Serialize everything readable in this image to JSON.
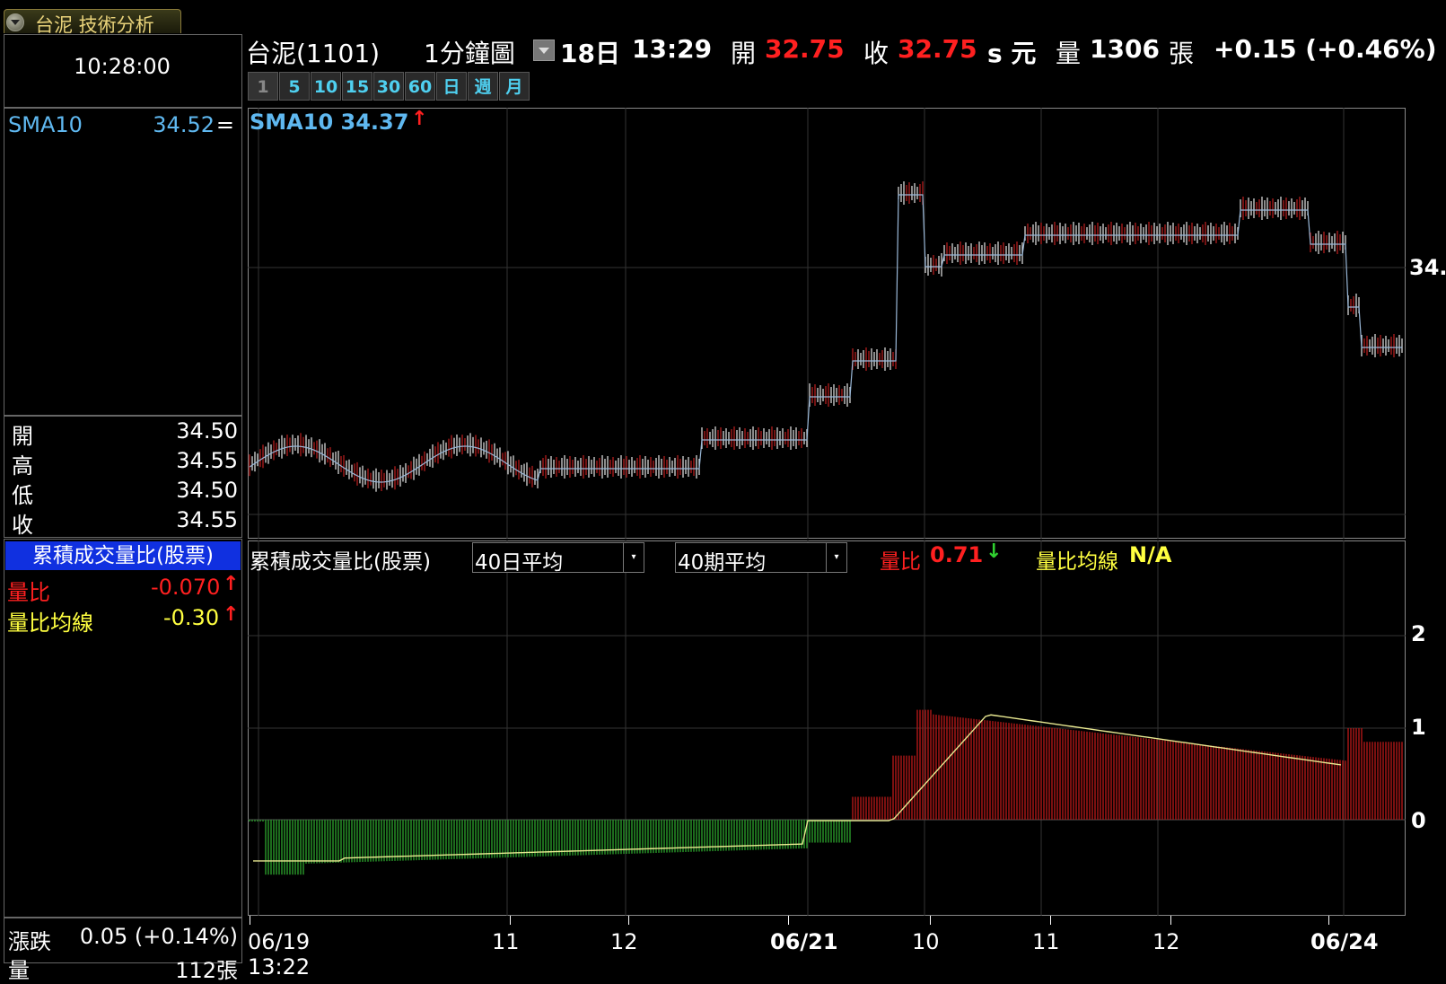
{
  "window": {
    "title": "台泥 技術分析"
  },
  "clock": "10:28:00",
  "left_panel": {
    "sma_label": "SMA10",
    "sma_value": "34.52",
    "sma_sym": "=",
    "ohlc": [
      {
        "key": "開",
        "value": "34.50"
      },
      {
        "key": "高",
        "value": "34.55"
      },
      {
        "key": "低",
        "value": "34.50"
      },
      {
        "key": "收",
        "value": "34.55"
      }
    ],
    "indicator_title": "累積成交量比(股票)",
    "ratio_label": "量比",
    "ratio_value": "-0.070",
    "ratio_ma_label": "量比均線",
    "ratio_ma_value": "-0.30",
    "change_label": "漲跌",
    "change_value": "0.05 (+0.14%)",
    "vol_label": "量",
    "vol_value": "112張"
  },
  "header": {
    "stock": "台泥(1101)",
    "chart_type": "1分鐘圖",
    "date": "18日",
    "time": "13:29",
    "open_label": "開",
    "open_value": "32.75",
    "close_label": "收",
    "close_value": "32.75",
    "unit": "s 元",
    "vol_label": "量",
    "vol_value": "1306",
    "vol_unit": "張",
    "change": "+0.15 (+0.46%)"
  },
  "periods": [
    "1",
    "5",
    "10",
    "15",
    "30",
    "60",
    "日",
    "週",
    "月"
  ],
  "price_chart": {
    "sma_label": "SMA10 34.37",
    "right_label": "34."
  },
  "indicator_chart": {
    "title": "累積成交量比(股票)",
    "dropdown1": "40日平均",
    "dropdown2": "40期平均",
    "ratio_label": "量比",
    "ratio_value": "0.71",
    "ma_label": "量比均線",
    "ma_value": "N/A",
    "y_ticks": [
      "2",
      "1",
      "0"
    ]
  },
  "x_axis": [
    {
      "label": "06/19 13:22",
      "bold": false
    },
    {
      "label": "11",
      "bold": false
    },
    {
      "label": "12",
      "bold": false
    },
    {
      "label": "06/21",
      "bold": true
    },
    {
      "label": "10",
      "bold": false
    },
    {
      "label": "11",
      "bold": false
    },
    {
      "label": "12",
      "bold": false
    },
    {
      "label": "06/24",
      "bold": true
    }
  ],
  "colors": {
    "up": "#ff2020",
    "down": "#30c030",
    "vol_up": "#b01818",
    "vol_down": "#2a9a2a",
    "sma": "#5fb8f0",
    "ma_line": "#e8e890"
  }
}
